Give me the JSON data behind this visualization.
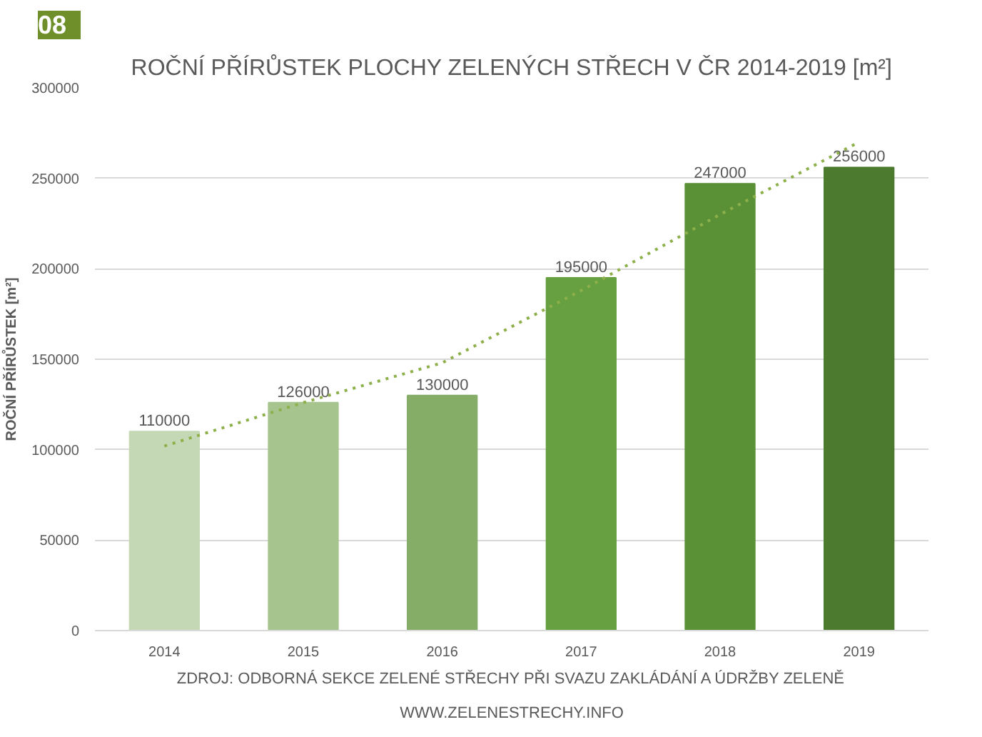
{
  "chart_data": {
    "type": "bar",
    "title": "ROČNÍ PŘÍRŮSTEK PLOCHY ZELENÝCH STŘECH V ČR 2014-2019 [m²]",
    "ylabel": "ROČNÍ PŘÍRŮSTEK [m²]",
    "categories": [
      "2014",
      "2015",
      "2016",
      "2017",
      "2018",
      "2019"
    ],
    "series": [
      {
        "values": [
          110000,
          126000,
          130000,
          195000,
          247000,
          256000
        ],
        "value_labels": [
          "110000",
          "126000",
          "130000",
          "195000",
          "247000",
          "256000"
        ],
        "colors": [
          "#c5d8b5",
          "#a6c48e",
          "#85ad67",
          "#67a040",
          "#5a9136",
          "#4c7a2e"
        ]
      },
      {
        "type": "line",
        "values": [
          102000,
          126000,
          148000,
          188000,
          230000,
          270000
        ],
        "color": "#8db04a",
        "line_style": "dotted"
      }
    ],
    "ylim": [
      0,
      300000
    ],
    "yticks": [
      0,
      50000,
      100000,
      150000,
      200000,
      250000,
      300000
    ],
    "grid": "y",
    "annotations": [
      "08",
      "ZDROJ: ODBORNÁ SEKCE ZELENÉ STŘECHY PŘI SVAZU ZAKLÁDÁNÍ A ÚDRŽBY ZELENĚ",
      "WWW.ZELENESTRECHY.INFO"
    ]
  }
}
